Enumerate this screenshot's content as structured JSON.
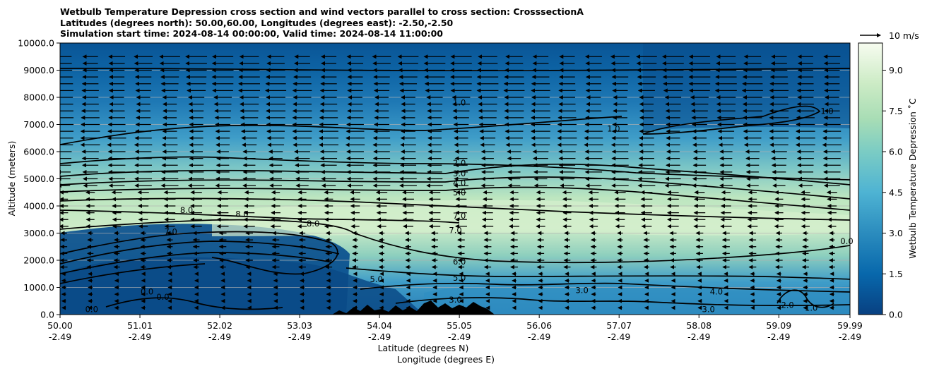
{
  "chart_data": {
    "type": "heatmap",
    "title_lines": [
      "Wetbulb Temperature Depression cross section and wind vectors parallel to cross section: CrosssectionA",
      "Latitudes (degrees north): 50.00,60.00, Longitudes (degrees east): -2.50,-2.50",
      "Simulation start time: 2024-08-14 00:00:00, Valid time: 2024-08-14 11:00:00"
    ],
    "xlabel_lines": [
      "Latitude (degrees N)",
      "Longitude (degrees E)"
    ],
    "ylabel": "Altitude (meters)",
    "colorbar_label": "Wetbulb Temperature Depression $^\\circ$C",
    "colorbar_label_display": "Wetbulb Temperature Depression ˚C",
    "x_ticks": [
      {
        "lat": "50.00",
        "lon": "-2.49"
      },
      {
        "lat": "51.01",
        "lon": "-2.49"
      },
      {
        "lat": "52.02",
        "lon": "-2.49"
      },
      {
        "lat": "53.03",
        "lon": "-2.49"
      },
      {
        "lat": "54.04",
        "lon": "-2.49"
      },
      {
        "lat": "55.05",
        "lon": "-2.49"
      },
      {
        "lat": "56.06",
        "lon": "-2.49"
      },
      {
        "lat": "57.07",
        "lon": "-2.49"
      },
      {
        "lat": "58.08",
        "lon": "-2.49"
      },
      {
        "lat": "59.09",
        "lon": "-2.49"
      },
      {
        "lat": "59.99",
        "lon": "-2.49"
      }
    ],
    "xlim": [
      50.0,
      59.99
    ],
    "y_ticks": [
      "0.0",
      "1000.0",
      "2000.0",
      "3000.0",
      "4000.0",
      "5000.0",
      "6000.0",
      "7000.0",
      "8000.0",
      "9000.0",
      "10000.0"
    ],
    "ylim": [
      0,
      10000
    ],
    "colorbar_ticks": [
      "0.0",
      "1.5",
      "3.0",
      "4.5",
      "6.0",
      "7.5",
      "9.0"
    ],
    "colorbar_range": [
      0,
      10
    ],
    "grid_horizontal": true,
    "wind_reference_label": "10 m/s",
    "wind_direction": "predominantly westward (right to left)",
    "contour_labels": [
      {
        "value": "1.0",
        "lat": 55.05,
        "alt": 7800
      },
      {
        "value": "1.0",
        "lat": 57.0,
        "alt": 6850
      },
      {
        "value": "1.0",
        "lat": 59.7,
        "alt": 7500
      },
      {
        "value": "2.0",
        "lat": 55.05,
        "alt": 5580
      },
      {
        "value": "3.0",
        "lat": 55.05,
        "alt": 5200
      },
      {
        "value": "4.0",
        "lat": 55.05,
        "alt": 4850
      },
      {
        "value": "5.0",
        "lat": 55.05,
        "alt": 4500
      },
      {
        "value": "7.0",
        "lat": 55.05,
        "alt": 3640
      },
      {
        "value": "7.0",
        "lat": 55.0,
        "alt": 3100
      },
      {
        "value": "8.0",
        "lat": 51.6,
        "alt": 3850
      },
      {
        "value": "8.0",
        "lat": 52.3,
        "alt": 3700
      },
      {
        "value": "8.0",
        "lat": 53.2,
        "alt": 3350
      },
      {
        "value": "7.0",
        "lat": 51.4,
        "alt": 3050
      },
      {
        "value": "6.0",
        "lat": 55.05,
        "alt": 1950
      },
      {
        "value": "5.0",
        "lat": 55.05,
        "alt": 1350
      },
      {
        "value": "5.0",
        "lat": 54.0,
        "alt": 1300
      },
      {
        "value": "3.0",
        "lat": 55.0,
        "alt": 550
      },
      {
        "value": "0.0",
        "lat": 51.1,
        "alt": 850
      },
      {
        "value": "0.0",
        "lat": 51.3,
        "alt": 650
      },
      {
        "value": "0.0",
        "lat": 50.4,
        "alt": 200
      },
      {
        "value": "3.0",
        "lat": 56.6,
        "alt": 900
      },
      {
        "value": "3.0",
        "lat": 58.2,
        "alt": 200
      },
      {
        "value": "4.0",
        "lat": 58.3,
        "alt": 850
      },
      {
        "value": "2.0",
        "lat": 59.2,
        "alt": 350
      },
      {
        "value": "1.0",
        "lat": 59.5,
        "alt": 250
      },
      {
        "value": "0.0",
        "lat": 59.95,
        "alt": 2700
      }
    ]
  }
}
